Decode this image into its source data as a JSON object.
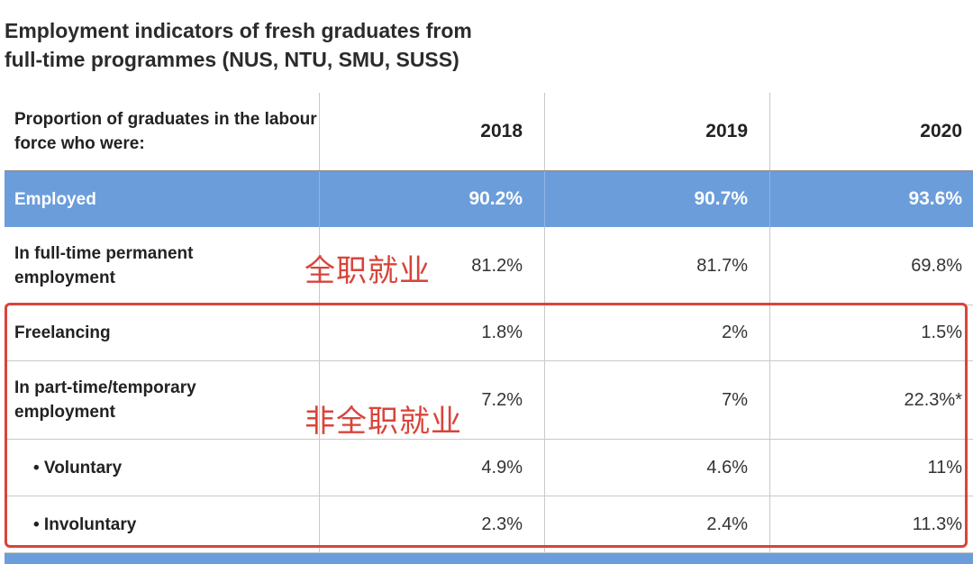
{
  "title": {
    "line1": "Employment indicators of fresh graduates from",
    "line2": "full-time programmes (NUS, NTU, SMU, SUSS)"
  },
  "annotations": {
    "full_time": "全职就业",
    "non_full_time": "非全职就业",
    "highlight_color": "#d9443a"
  },
  "colors": {
    "employed_row": "#6b9ddb"
  },
  "chart_data": {
    "type": "table",
    "title": "Employment indicators of fresh graduates from full-time programmes (NUS, NTU, SMU, SUSS)",
    "header": {
      "label": "Proportion of graduates in the labour force who were:",
      "years": [
        "2018",
        "2019",
        "2020"
      ]
    },
    "rows": [
      {
        "label": "Employed",
        "values": [
          "90.2%",
          "90.7%",
          "93.6%"
        ]
      },
      {
        "label": "In full-time permanent employment",
        "values": [
          "81.2%",
          "81.7%",
          "69.8%"
        ]
      },
      {
        "label": "Freelancing",
        "values": [
          "1.8%",
          "2%",
          "1.5%"
        ]
      },
      {
        "label": "In part-time/temporary employment",
        "values": [
          "7.2%",
          "7%",
          "22.3%*"
        ]
      },
      {
        "label": "• Voluntary",
        "values": [
          "4.9%",
          "4.6%",
          "11%"
        ]
      },
      {
        "label": "• Involuntary",
        "values": [
          "2.3%",
          "2.4%",
          "11.3%"
        ]
      }
    ]
  }
}
